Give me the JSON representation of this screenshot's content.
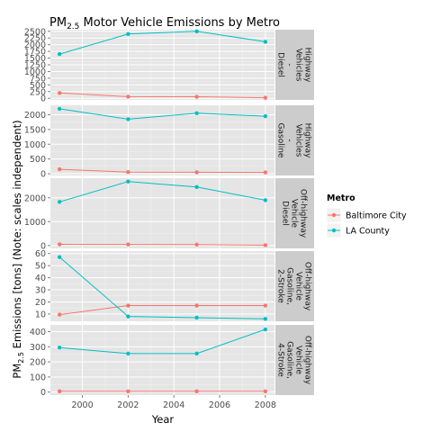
{
  "chart_data": {
    "type": "line",
    "title_main": "PM",
    "title_sub": "2.5",
    "title_rest": " Motor Vehicle Emissions by Metro",
    "xlabel": "Year",
    "ylabel_pre": "PM",
    "ylabel_sub": "2.5",
    "ylabel_post": " Emissions [tons] (Note: scales independent)",
    "x_ticks": [
      2000,
      2002,
      2004,
      2006,
      2008
    ],
    "xlim": [
      1998.6,
      2008.4
    ],
    "legend": {
      "title": "Metro",
      "position": "right",
      "entries": [
        {
          "name": "Baltimore City",
          "color": "#F8766D"
        },
        {
          "name": "LA County",
          "color": "#00BFC4"
        }
      ]
    },
    "colors": {
      "panel_bg": "#E5E5E5",
      "grid": "#FFFFFF",
      "strip_bg": "#CCCCCC",
      "tick_text": "#4D4D4D",
      "text": "#000000"
    },
    "panels": [
      {
        "strip": [
          "Highway",
          "Vehicles",
          "-",
          "Diesel"
        ],
        "ylim": [
          -60,
          2560
        ],
        "y_ticks": [
          0,
          250,
          500,
          750,
          1000,
          1250,
          1500,
          1750,
          2000,
          2250,
          2500
        ],
        "series": [
          {
            "name": "Baltimore City",
            "x": [
              1999,
              2002,
              2005,
              2008
            ],
            "y": [
              197,
              60,
              57,
              20
            ]
          },
          {
            "name": "LA County",
            "x": [
              1999,
              2002,
              2005,
              2008
            ],
            "y": [
              1650,
              2400,
              2500,
              2110
            ]
          }
        ]
      },
      {
        "strip": [
          "Highway",
          "Vehicles",
          "-",
          "Gasoline"
        ],
        "ylim": [
          -60,
          2320
        ],
        "y_ticks": [
          0,
          500,
          1000,
          1500,
          2000
        ],
        "series": [
          {
            "name": "Baltimore City",
            "x": [
              1999,
              2002,
              2005,
              2008
            ],
            "y": [
              150,
              55,
              50,
              45
            ]
          },
          {
            "name": "LA County",
            "x": [
              1999,
              2002,
              2005,
              2008
            ],
            "y": [
              2200,
              1850,
              2050,
              1950
            ]
          }
        ]
      },
      {
        "strip": [
          "Off-highway",
          "Vehicle",
          "Diesel"
        ],
        "ylim": [
          -120,
          2820
        ],
        "y_ticks": [
          0,
          1000,
          2000
        ],
        "series": [
          {
            "name": "Baltimore City",
            "x": [
              1999,
              2002,
              2005,
              2008
            ],
            "y": [
              50,
              45,
              40,
              15
            ]
          },
          {
            "name": "LA County",
            "x": [
              1999,
              2002,
              2005,
              2008
            ],
            "y": [
              1830,
              2680,
              2450,
              1900
            ]
          }
        ]
      },
      {
        "strip": [
          "Off-highway",
          "Vehicle",
          "Gasoline,",
          "2-Stroke"
        ],
        "ylim": [
          4,
          62
        ],
        "y_ticks": [
          10,
          20,
          30,
          40,
          50,
          60
        ],
        "series": [
          {
            "name": "Baltimore City",
            "x": [
              1999,
              2002,
              2005,
              2008
            ],
            "y": [
              9.5,
              17,
              17,
              17
            ]
          },
          {
            "name": "LA County",
            "x": [
              1999,
              2002,
              2005,
              2008
            ],
            "y": [
              57,
              8,
              7,
              6
            ]
          }
        ]
      },
      {
        "strip": [
          "Off-highway",
          "Vehicle",
          "Gasoline,",
          "4-Stroke"
        ],
        "ylim": [
          -20,
          445
        ],
        "y_ticks": [
          0,
          100,
          200,
          300,
          400
        ],
        "series": [
          {
            "name": "Baltimore City",
            "x": [
              1999,
              2002,
              2005,
              2008
            ],
            "y": [
              5,
              5,
              5,
              5
            ]
          },
          {
            "name": "LA County",
            "x": [
              1999,
              2002,
              2005,
              2008
            ],
            "y": [
              295,
              255,
              255,
              415
            ]
          }
        ]
      }
    ]
  }
}
